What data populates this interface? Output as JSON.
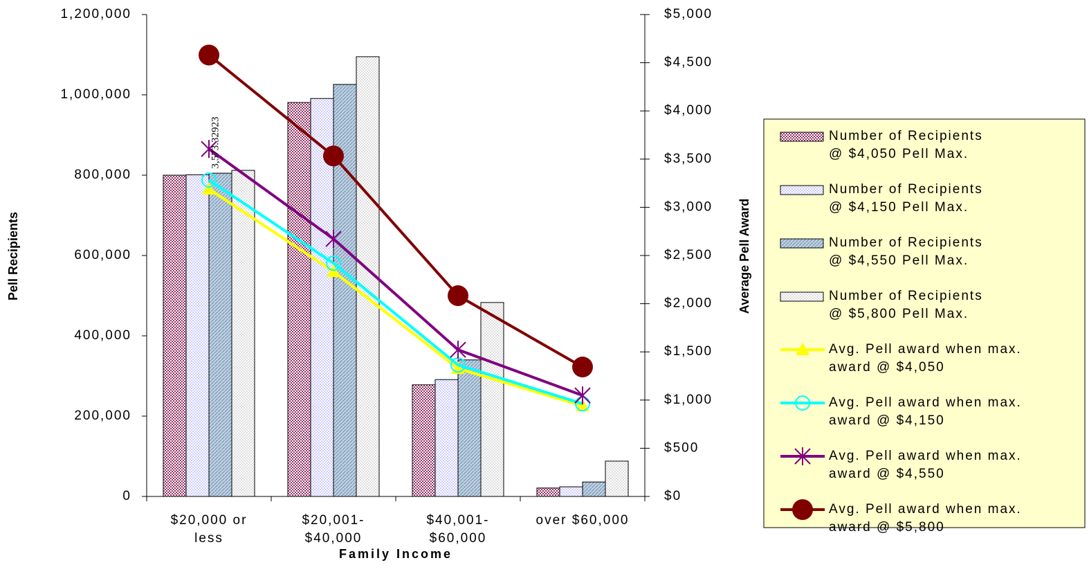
{
  "chart_data": {
    "type": "bar+line",
    "categories": [
      "$20,000 or\nless",
      "$20,001-\n$40,000",
      "$40,001-\n$60,000",
      "over $60,000"
    ],
    "xlabel": "Family Income",
    "ylabel": "Pell Recipients",
    "y2label": "Average Pell Award",
    "annotation": "3,573.32923",
    "ylim": [
      0,
      1200000
    ],
    "yticks": [
      0,
      {
        "value": 200000,
        "label": "200,000"
      },
      {
        "value": 400000,
        "label": "400,000"
      },
      {
        "value": 600000,
        "label": "600,000"
      },
      {
        "value": 800000,
        "label": "800,000"
      },
      {
        "value": 1000000,
        "label": "1,000,000"
      },
      {
        "value": 1200000,
        "label": "1,200,000"
      }
    ],
    "y2lim": [
      0,
      5000
    ],
    "y2ticks": [
      {
        "value": 0,
        "label": "$0"
      },
      {
        "value": 500,
        "label": "$500"
      },
      {
        "value": 1000,
        "label": "$1,000"
      },
      {
        "value": 1500,
        "label": "$1,500"
      },
      {
        "value": 2000,
        "label": "$2,000"
      },
      {
        "value": 2500,
        "label": "$2,500"
      },
      {
        "value": 3000,
        "label": "$3,000"
      },
      {
        "value": 3500,
        "label": "$3,500"
      },
      {
        "value": 4000,
        "label": "$4,000"
      },
      {
        "value": 4500,
        "label": "$4,500"
      },
      {
        "value": 5000,
        "label": "$5,000"
      }
    ],
    "series": [
      {
        "name": "Number of Recipients\n@ $4,050 Pell  Max.",
        "type": "bar",
        "pattern": "dots",
        "color": "#993366",
        "values": [
          800000,
          981000,
          278000,
          21000
        ]
      },
      {
        "name": "Number of Recipients\n@ $4,150 Pell  Max.",
        "type": "bar",
        "pattern": "dots",
        "color": "#ccccff",
        "values": [
          801000,
          991000,
          291000,
          24000
        ]
      },
      {
        "name": "Number of Recipients\n@ $4,550 Pell Max.",
        "type": "bar",
        "pattern": "hatch",
        "color": "#7799bb",
        "values": [
          805000,
          1026000,
          340000,
          36000
        ]
      },
      {
        "name": "Number of Recipients\n@ $5,800 Pell Max.",
        "type": "bar",
        "pattern": "dots",
        "color": "#dddddd",
        "values": [
          812000,
          1095000,
          483000,
          88000
        ]
      },
      {
        "name": "Avg. Pell award when max.\naward @ $4,050",
        "type": "line",
        "axis": "y2",
        "marker": "triangle",
        "color": "#ffff00",
        "values": [
          3190,
          2334,
          1328,
          940
        ]
      },
      {
        "name": "Avg. Pell award when max.\naward @ $4,150",
        "type": "line",
        "axis": "y2",
        "marker": "open-circle",
        "color": "#00ffff",
        "values": [
          3283,
          2420,
          1364,
          962
        ]
      },
      {
        "name": "Avg. Pell award  when max.\naward @ $4,550",
        "type": "line",
        "axis": "y2",
        "marker": "star",
        "color": "#800080",
        "values": [
          3605,
          2672,
          1522,
          1048
        ]
      },
      {
        "name": "Avg. Pell award  when max.\naward @ $5,800",
        "type": "line",
        "axis": "y2",
        "marker": "circle",
        "color": "#800000",
        "values": [
          4580,
          3533,
          2083,
          1343
        ]
      }
    ],
    "legend": "right"
  }
}
